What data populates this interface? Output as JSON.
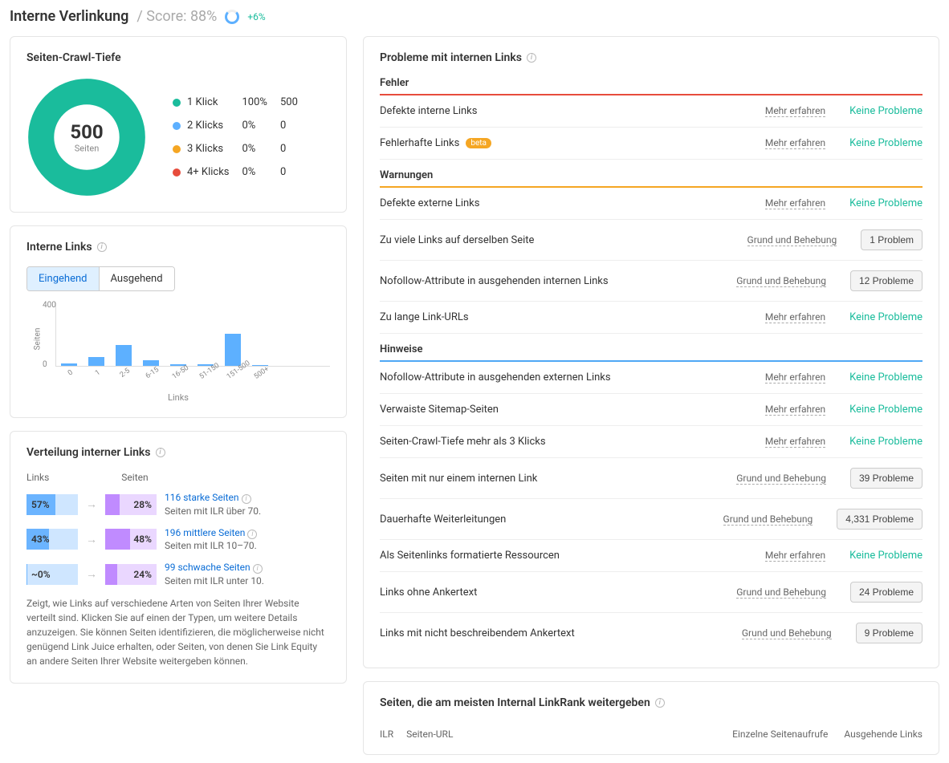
{
  "header": {
    "title": "Interne Verlinkung",
    "score_label": "/ Score: 88%",
    "delta": "+6%"
  },
  "crawl": {
    "title": "Seiten-Crawl-Tiefe",
    "center_value": "500",
    "center_label": "Seiten",
    "donut_color": "#1abc9c",
    "donut_bg": "#eee",
    "rows": [
      {
        "color": "#1abc9c",
        "label": "1 Klick",
        "pct": "100%",
        "n": "500"
      },
      {
        "color": "#5db0ff",
        "label": "2 Klicks",
        "pct": "0%",
        "n": "0"
      },
      {
        "color": "#f5a623",
        "label": "3 Klicks",
        "pct": "0%",
        "n": "0"
      },
      {
        "color": "#e74c3c",
        "label": "4+ Klicks",
        "pct": "0%",
        "n": "0"
      }
    ]
  },
  "links_chart": {
    "title": "Interne Links",
    "tabs": [
      {
        "label": "Eingehend",
        "active": true
      },
      {
        "label": "Ausgehend",
        "active": false
      }
    ],
    "y_label": "Seiten",
    "x_label": "Links",
    "y_tick0": "0",
    "y_tick400": "400",
    "bar_color": "#5db0ff",
    "max": 400,
    "bars": [
      {
        "label": "0",
        "v": 15
      },
      {
        "label": "1",
        "v": 55
      },
      {
        "label": "2-5",
        "v": 130
      },
      {
        "label": "6-15",
        "v": 35
      },
      {
        "label": "16-50",
        "v": 10
      },
      {
        "label": "51-150",
        "v": 8
      },
      {
        "label": "151-500",
        "v": 200
      },
      {
        "label": "500+",
        "v": 5
      }
    ]
  },
  "dist": {
    "title": "Verteilung interner Links",
    "col_links": "Links",
    "col_pages": "Seiten",
    "rows": [
      {
        "lp": "57%",
        "lf": 57,
        "rp": "28%",
        "rf": 28,
        "link": "116 starke Seiten",
        "sub": "Seiten mit ILR über 70."
      },
      {
        "lp": "43%",
        "lf": 43,
        "rp": "48%",
        "rf": 48,
        "link": "196 mittlere Seiten",
        "sub": "Seiten mit ILR 10–70."
      },
      {
        "lp": "~0%",
        "lf": 2,
        "rp": "24%",
        "rf": 24,
        "link": "99 schwache Seiten",
        "sub": "Seiten mit ILR unter 10."
      }
    ],
    "foot": "Zeigt, wie Links auf verschiedene Arten von Seiten Ihrer Website verteilt sind. Klicken Sie auf einen der Typen, um weitere Details anzuzeigen. Sie können Seiten identifizieren, die möglicherweise nicht genügend Link Juice erhalten, oder Seiten, von denen Sie Link Equity an andere Seiten Ihrer Website weitergeben können."
  },
  "problems": {
    "title": "Probleme mit internen Links",
    "no_problem_text": "Keine Probleme",
    "mehr": "Mehr erfahren",
    "grund": "Grund und Behebung",
    "sections": [
      {
        "name": "Fehler",
        "sep": "red",
        "items": [
          {
            "label": "Defekte interne Links",
            "link": "mehr",
            "status": "ok"
          },
          {
            "label": "Fehlerhafte Links",
            "beta": "beta",
            "link": "mehr",
            "status": "ok"
          }
        ]
      },
      {
        "name": "Warnungen",
        "sep": "orange",
        "items": [
          {
            "label": "Defekte externe Links",
            "link": "mehr",
            "status": "ok"
          },
          {
            "label": "Zu viele Links auf derselben Seite",
            "link": "grund",
            "btn": "1 Problem"
          },
          {
            "label": "Nofollow-Attribute in ausgehenden internen Links",
            "link": "grund",
            "btn": "12 Probleme"
          },
          {
            "label": "Zu lange Link-URLs",
            "link": "mehr",
            "status": "ok"
          }
        ]
      },
      {
        "name": "Hinweise",
        "sep": "blue",
        "items": [
          {
            "label": "Nofollow-Attribute in ausgehenden externen Links",
            "link": "mehr",
            "status": "ok"
          },
          {
            "label": "Verwaiste Sitemap-Seiten",
            "link": "mehr",
            "status": "ok"
          },
          {
            "label": "Seiten-Crawl-Tiefe mehr als 3 Klicks",
            "link": "mehr",
            "status": "ok"
          },
          {
            "label": "Seiten mit nur einem internen Link",
            "link": "grund",
            "btn": "39 Probleme"
          },
          {
            "label": "Dauerhafte Weiterleitungen",
            "link": "grund",
            "btn": "4,331 Probleme"
          },
          {
            "label": "Als Seitenlinks formatierte Ressourcen",
            "link": "mehr",
            "status": "ok"
          },
          {
            "label": "Links ohne Ankertext",
            "link": "grund",
            "btn": "24 Probleme"
          },
          {
            "label": "Links mit nicht beschreibendem Ankertext",
            "link": "grund",
            "btn": "9 Probleme"
          }
        ]
      }
    ]
  },
  "bottom": {
    "title": "Seiten, die am meisten Internal LinkRank weitergeben",
    "cols": {
      "ilr": "ILR",
      "url": "Seiten-URL",
      "views": "Einzelne Seitenaufrufe",
      "out": "Ausgehende Links"
    }
  }
}
